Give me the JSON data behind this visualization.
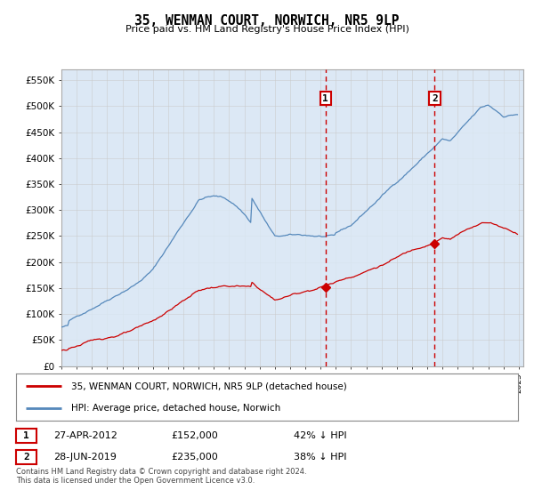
{
  "title": "35, WENMAN COURT, NORWICH, NR5 9LP",
  "subtitle": "Price paid vs. HM Land Registry's House Price Index (HPI)",
  "ylabel_ticks": [
    "£0",
    "£50K",
    "£100K",
    "£150K",
    "£200K",
    "£250K",
    "£300K",
    "£350K",
    "£400K",
    "£450K",
    "£500K",
    "£550K"
  ],
  "ytick_values": [
    0,
    50000,
    100000,
    150000,
    200000,
    250000,
    300000,
    350000,
    400000,
    450000,
    500000,
    550000
  ],
  "ylim": [
    0,
    570000
  ],
  "xlim_start": 1995.0,
  "xlim_end": 2025.3,
  "background_color": "#ffffff",
  "plot_bg_color": "#dce8f5",
  "grid_color": "#c8c8c8",
  "sale1_year": 2012.32,
  "sale1_price": 152000,
  "sale1_label": "27-APR-2012",
  "sale1_amount": "£152,000",
  "sale1_pct": "42% ↓ HPI",
  "sale2_year": 2019.49,
  "sale2_price": 235000,
  "sale2_label": "28-JUN-2019",
  "sale2_amount": "£235,000",
  "sale2_pct": "38% ↓ HPI",
  "red_line_color": "#cc0000",
  "blue_line_color": "#5588bb",
  "fill_color": "#ccddf0",
  "dashed_line_color": "#cc0000",
  "marker_box_color": "#cc0000",
  "legend_line1": "35, WENMAN COURT, NORWICH, NR5 9LP (detached house)",
  "legend_line2": "HPI: Average price, detached house, Norwich",
  "footnote": "Contains HM Land Registry data © Crown copyright and database right 2024.\nThis data is licensed under the Open Government Licence v3.0."
}
